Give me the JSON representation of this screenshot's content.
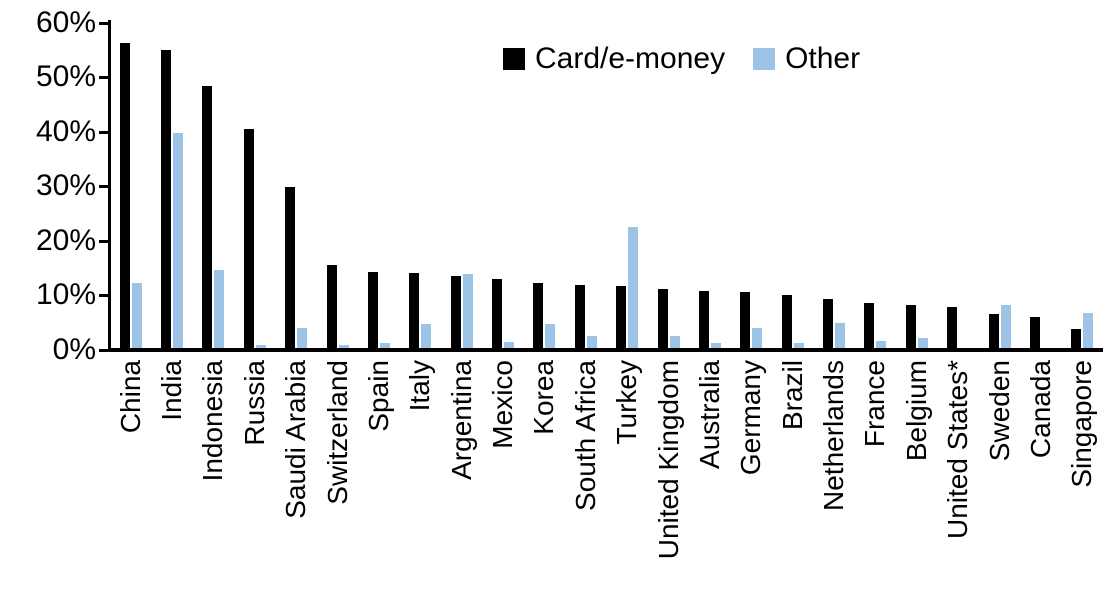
{
  "chart_data": {
    "type": "bar",
    "title": "",
    "xlabel": "",
    "ylabel": "",
    "ylim": [
      0,
      60
    ],
    "grid": false,
    "legend_position": "top-center",
    "ytick_labels": [
      "0%",
      "10%",
      "20%",
      "30%",
      "40%",
      "50%",
      "60%"
    ],
    "ytick_values": [
      0,
      10,
      20,
      30,
      40,
      50,
      60
    ],
    "categories": [
      "China",
      "India",
      "Indonesia",
      "Russia",
      "Saudi Arabia",
      "Switzerland",
      "Spain",
      "Italy",
      "Argentina",
      "Mexico",
      "Korea",
      "South Africa",
      "Turkey",
      "United Kingdom",
      "Australia",
      "Germany",
      "Brazil",
      "Netherlands",
      "France",
      "Belgium",
      "United States*",
      "Sweden",
      "Canada",
      "Singapore"
    ],
    "series": [
      {
        "name": "Card/e-money",
        "color": "#000000",
        "values": [
          56.3,
          55.0,
          48.4,
          40.6,
          29.8,
          15.6,
          14.3,
          14.1,
          13.5,
          13.0,
          12.2,
          11.9,
          11.8,
          11.1,
          10.8,
          10.7,
          10.1,
          9.4,
          8.7,
          8.3,
          7.9,
          6.6,
          6.0,
          3.9
        ]
      },
      {
        "name": "Other",
        "color": "#9DC3E6",
        "values": [
          12.3,
          39.7,
          14.6,
          1.0,
          4.0,
          1.0,
          1.2,
          4.7,
          13.9,
          1.5,
          4.7,
          2.5,
          22.5,
          2.5,
          1.2,
          4.1,
          1.3,
          4.9,
          1.6,
          2.2,
          0.4,
          8.2,
          0,
          6.7
        ]
      }
    ],
    "axis_color": "#000000"
  }
}
